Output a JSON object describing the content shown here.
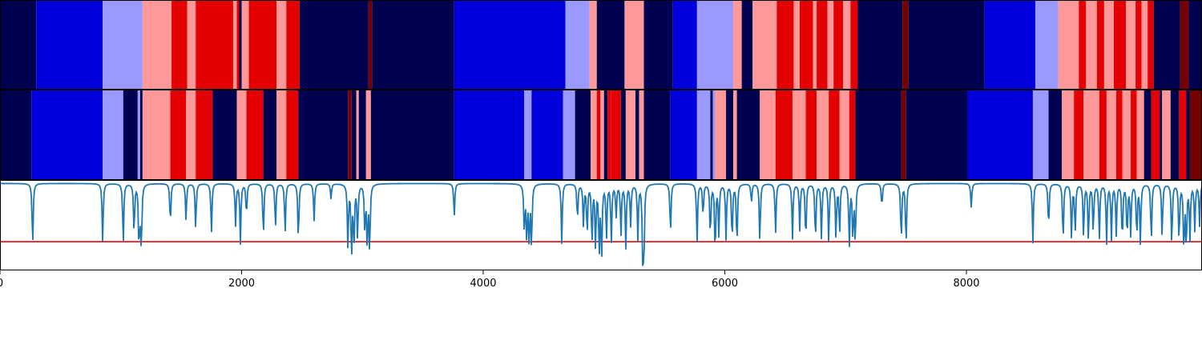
{
  "chart_data": {
    "type": "heatmap",
    "x_range": [
      0,
      9950
    ],
    "x_ticks": [
      0,
      2000,
      4000,
      6000,
      8000
    ],
    "x_tick_labels": [
      "0",
      "2000",
      "4000",
      "6000",
      "8000"
    ],
    "state_colors": {
      "0": "#000050",
      "1": "#0000dd",
      "2": "#9999ff",
      "3": "#ff9999",
      "4": "#e30000",
      "5": "#740000"
    },
    "track_1_segments": [
      [
        0,
        300,
        0
      ],
      [
        300,
        850,
        1
      ],
      [
        850,
        1180,
        2
      ],
      [
        1180,
        1420,
        3
      ],
      [
        1420,
        1550,
        4
      ],
      [
        1550,
        1620,
        3
      ],
      [
        1620,
        1930,
        4
      ],
      [
        1930,
        1960,
        3
      ],
      [
        1960,
        1980,
        4
      ],
      [
        1980,
        2000,
        0
      ],
      [
        2000,
        2060,
        3
      ],
      [
        2060,
        2290,
        4
      ],
      [
        2290,
        2370,
        3
      ],
      [
        2370,
        2480,
        4
      ],
      [
        2480,
        3050,
        0
      ],
      [
        3050,
        3080,
        5
      ],
      [
        3080,
        3760,
        0
      ],
      [
        3760,
        4680,
        1
      ],
      [
        4680,
        4880,
        2
      ],
      [
        4880,
        4940,
        3
      ],
      [
        4940,
        5170,
        0
      ],
      [
        5170,
        5330,
        3
      ],
      [
        5330,
        5570,
        0
      ],
      [
        5570,
        5770,
        1
      ],
      [
        5770,
        6070,
        2
      ],
      [
        6070,
        6140,
        3
      ],
      [
        6140,
        6230,
        0
      ],
      [
        6230,
        6430,
        3
      ],
      [
        6430,
        6570,
        4
      ],
      [
        6570,
        6620,
        3
      ],
      [
        6620,
        6730,
        4
      ],
      [
        6730,
        6760,
        3
      ],
      [
        6760,
        6850,
        4
      ],
      [
        6850,
        6900,
        3
      ],
      [
        6900,
        6980,
        4
      ],
      [
        6980,
        7040,
        3
      ],
      [
        7040,
        7100,
        4
      ],
      [
        7100,
        7470,
        0
      ],
      [
        7470,
        7520,
        5
      ],
      [
        7520,
        8150,
        0
      ],
      [
        8150,
        8570,
        1
      ],
      [
        8570,
        8760,
        2
      ],
      [
        8760,
        8930,
        3
      ],
      [
        8930,
        8990,
        4
      ],
      [
        8990,
        9080,
        3
      ],
      [
        9080,
        9140,
        4
      ],
      [
        9140,
        9220,
        3
      ],
      [
        9220,
        9320,
        4
      ],
      [
        9320,
        9400,
        3
      ],
      [
        9400,
        9450,
        4
      ],
      [
        9450,
        9500,
        3
      ],
      [
        9500,
        9550,
        4
      ],
      [
        9550,
        9770,
        0
      ],
      [
        9770,
        9840,
        5
      ],
      [
        9840,
        9950,
        0
      ]
    ],
    "track_2_segments": [
      [
        0,
        260,
        0
      ],
      [
        260,
        850,
        1
      ],
      [
        850,
        1020,
        2
      ],
      [
        1020,
        1140,
        0
      ],
      [
        1140,
        1160,
        2
      ],
      [
        1160,
        1180,
        0
      ],
      [
        1180,
        1410,
        3
      ],
      [
        1410,
        1540,
        4
      ],
      [
        1540,
        1620,
        3
      ],
      [
        1620,
        1760,
        4
      ],
      [
        1760,
        1960,
        0
      ],
      [
        1960,
        2040,
        3
      ],
      [
        2040,
        2180,
        4
      ],
      [
        2180,
        2290,
        0
      ],
      [
        2290,
        2370,
        3
      ],
      [
        2370,
        2470,
        4
      ],
      [
        2470,
        2880,
        0
      ],
      [
        2880,
        2910,
        5
      ],
      [
        2910,
        2950,
        0
      ],
      [
        2950,
        2970,
        3
      ],
      [
        2970,
        3030,
        0
      ],
      [
        3030,
        3070,
        3
      ],
      [
        3070,
        3760,
        0
      ],
      [
        3760,
        4340,
        1
      ],
      [
        4340,
        4400,
        2
      ],
      [
        4400,
        4660,
        1
      ],
      [
        4660,
        4760,
        2
      ],
      [
        4760,
        4890,
        0
      ],
      [
        4890,
        4940,
        3
      ],
      [
        4940,
        4970,
        4
      ],
      [
        4970,
        5000,
        3
      ],
      [
        5000,
        5030,
        0
      ],
      [
        5030,
        5060,
        4
      ],
      [
        5060,
        5140,
        4
      ],
      [
        5140,
        5180,
        0
      ],
      [
        5180,
        5260,
        3
      ],
      [
        5260,
        5290,
        0
      ],
      [
        5290,
        5330,
        3
      ],
      [
        5330,
        5550,
        0
      ],
      [
        5550,
        5770,
        1
      ],
      [
        5770,
        5880,
        2
      ],
      [
        5880,
        5900,
        0
      ],
      [
        5900,
        5920,
        2
      ],
      [
        5920,
        6010,
        3
      ],
      [
        6010,
        6070,
        0
      ],
      [
        6070,
        6100,
        3
      ],
      [
        6100,
        6290,
        0
      ],
      [
        6290,
        6420,
        3
      ],
      [
        6420,
        6560,
        4
      ],
      [
        6560,
        6670,
        3
      ],
      [
        6670,
        6760,
        4
      ],
      [
        6760,
        6860,
        3
      ],
      [
        6860,
        6950,
        4
      ],
      [
        6950,
        7030,
        3
      ],
      [
        7030,
        7080,
        4
      ],
      [
        7080,
        7460,
        0
      ],
      [
        7460,
        7500,
        5
      ],
      [
        7500,
        8010,
        0
      ],
      [
        8010,
        8550,
        1
      ],
      [
        8550,
        8680,
        2
      ],
      [
        8680,
        8790,
        0
      ],
      [
        8790,
        8890,
        3
      ],
      [
        8890,
        8970,
        4
      ],
      [
        8970,
        9100,
        3
      ],
      [
        9100,
        9160,
        4
      ],
      [
        9160,
        9240,
        3
      ],
      [
        9240,
        9290,
        4
      ],
      [
        9290,
        9360,
        3
      ],
      [
        9360,
        9410,
        4
      ],
      [
        9410,
        9470,
        3
      ],
      [
        9470,
        9530,
        0
      ],
      [
        9530,
        9600,
        4
      ],
      [
        9600,
        9620,
        0
      ],
      [
        9620,
        9690,
        3
      ],
      [
        9690,
        9760,
        0
      ],
      [
        9760,
        9820,
        4
      ],
      [
        9820,
        9850,
        0
      ],
      [
        9850,
        9950,
        5
      ]
    ],
    "line_series": {
      "color": "#1f77b4",
      "baseline": 0.97,
      "y_range": [
        0,
        1
      ],
      "dips": [
        [
          270,
          0.25
        ],
        [
          850,
          0.3
        ],
        [
          1020,
          0.28
        ],
        [
          1110,
          0.4
        ],
        [
          1150,
          0.3
        ],
        [
          1170,
          0.25
        ],
        [
          1160,
          0.8
        ],
        [
          1410,
          0.5
        ],
        [
          1540,
          0.55
        ],
        [
          1620,
          0.45
        ],
        [
          1750,
          0.4
        ],
        [
          1950,
          0.5
        ],
        [
          1990,
          0.3
        ],
        [
          2040,
          0.6
        ],
        [
          2180,
          0.35
        ],
        [
          2280,
          0.45
        ],
        [
          2360,
          0.4
        ],
        [
          2470,
          0.3
        ],
        [
          2600,
          0.55
        ],
        [
          2740,
          0.8
        ],
        [
          2880,
          0.25
        ],
        [
          2910,
          0.15
        ],
        [
          2930,
          0.3
        ],
        [
          2960,
          0.35
        ],
        [
          3020,
          0.45
        ],
        [
          3040,
          0.28
        ],
        [
          3060,
          0.2
        ],
        [
          3760,
          0.6
        ],
        [
          4340,
          0.45
        ],
        [
          4360,
          0.35
        ],
        [
          4380,
          0.3
        ],
        [
          4400,
          0.25
        ],
        [
          4650,
          0.3
        ],
        [
          4780,
          0.55
        ],
        [
          4830,
          0.5
        ],
        [
          4860,
          0.4
        ],
        [
          4900,
          0.3
        ],
        [
          4930,
          0.25
        ],
        [
          4960,
          0.2
        ],
        [
          4980,
          0.15
        ],
        [
          5020,
          0.35
        ],
        [
          5060,
          0.3
        ],
        [
          5100,
          0.6
        ],
        [
          5140,
          0.4
        ],
        [
          5180,
          0.25
        ],
        [
          5220,
          0.5
        ],
        [
          5280,
          0.35
        ],
        [
          5320,
          0.2
        ],
        [
          5330,
          0.15
        ],
        [
          5550,
          0.4
        ],
        [
          5770,
          0.3
        ],
        [
          5820,
          0.6
        ],
        [
          5880,
          0.35
        ],
        [
          5920,
          0.15
        ],
        [
          5950,
          0.4
        ],
        [
          6010,
          0.35
        ],
        [
          6060,
          0.3
        ],
        [
          6100,
          0.25
        ],
        [
          6220,
          0.75
        ],
        [
          6290,
          0.3
        ],
        [
          6420,
          0.4
        ],
        [
          6560,
          0.35
        ],
        [
          6620,
          0.45
        ],
        [
          6670,
          0.3
        ],
        [
          6750,
          0.3
        ],
        [
          6800,
          0.35
        ],
        [
          6860,
          0.3
        ],
        [
          6920,
          0.35
        ],
        [
          6950,
          0.4
        ],
        [
          7030,
          0.25
        ],
        [
          7060,
          0.35
        ],
        [
          7080,
          0.3
        ],
        [
          7300,
          0.7
        ],
        [
          7460,
          0.3
        ],
        [
          7500,
          0.25
        ],
        [
          8040,
          0.7
        ],
        [
          8550,
          0.3
        ],
        [
          8680,
          0.45
        ],
        [
          8800,
          0.3
        ],
        [
          8870,
          0.35
        ],
        [
          8900,
          0.4
        ],
        [
          8970,
          0.35
        ],
        [
          9010,
          0.3
        ],
        [
          9050,
          0.4
        ],
        [
          9100,
          0.35
        ],
        [
          9160,
          0.3
        ],
        [
          9200,
          0.35
        ],
        [
          9240,
          0.4
        ],
        [
          9290,
          0.3
        ],
        [
          9330,
          0.35
        ],
        [
          9360,
          0.4
        ],
        [
          9410,
          0.35
        ],
        [
          9440,
          0.3
        ],
        [
          9530,
          0.3
        ],
        [
          9620,
          0.35
        ],
        [
          9700,
          0.25
        ],
        [
          9760,
          0.3
        ],
        [
          9800,
          0.2
        ],
        [
          9820,
          0.25
        ],
        [
          9850,
          0.35
        ],
        [
          9890,
          0.45
        ],
        [
          9930,
          0.5
        ]
      ]
    },
    "threshold": {
      "value": 0.32,
      "color": "#e31a1c"
    }
  }
}
